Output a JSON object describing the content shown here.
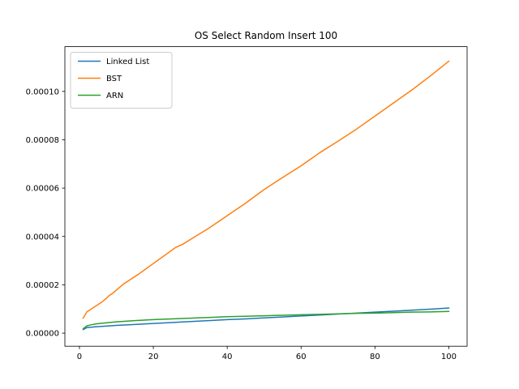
{
  "chart_data": {
    "type": "line",
    "title": "OS Select Random Insert 100",
    "xlabel": "",
    "ylabel": "",
    "xlim": [
      -3.95,
      104.95
    ],
    "ylim": [
      -5.4e-06,
      0.0001185
    ],
    "xticks": [
      0,
      20,
      40,
      60,
      80,
      100
    ],
    "xtick_labels": [
      "0",
      "20",
      "40",
      "60",
      "80",
      "100"
    ],
    "yticks": [
      0,
      2e-05,
      4e-05,
      6e-05,
      8e-05,
      0.0001
    ],
    "ytick_labels": [
      "0.00000",
      "0.00002",
      "0.00004",
      "0.00006",
      "0.00008",
      "0.00010"
    ],
    "grid": false,
    "legend_position": "upper-left",
    "series": [
      {
        "name": "Linked List",
        "color": "#1f77b4",
        "x": [
          1,
          2,
          4,
          6,
          8,
          10,
          15,
          20,
          25,
          30,
          35,
          40,
          45,
          50,
          55,
          60,
          65,
          70,
          75,
          80,
          85,
          90,
          95,
          100
        ],
        "y": [
          1.5e-06,
          2.3e-06,
          2.6e-06,
          2.8e-06,
          3e-06,
          3.2e-06,
          3.6e-06,
          4e-06,
          4.4e-06,
          4.8e-06,
          5.2e-06,
          5.6e-06,
          5.9e-06,
          6.3e-06,
          6.7e-06,
          7.1e-06,
          7.5e-06,
          7.9e-06,
          8.3e-06,
          8.7e-06,
          9.1e-06,
          9.5e-06,
          9.9e-06,
          1.04e-05
        ]
      },
      {
        "name": "BST",
        "color": "#ff7f0e",
        "x": [
          1,
          2,
          3,
          4,
          5,
          6,
          7,
          8,
          9,
          10,
          12,
          14,
          16,
          18,
          20,
          22,
          24,
          26,
          28,
          30,
          35,
          40,
          45,
          50,
          55,
          60,
          65,
          70,
          75,
          80,
          85,
          90,
          95,
          100
        ],
        "y": [
          6.2e-06,
          8.8e-06,
          9.8e-06,
          1.08e-05,
          1.18e-05,
          1.28e-05,
          1.4e-05,
          1.55e-05,
          1.65e-05,
          1.78e-05,
          2.04e-05,
          2.24e-05,
          2.44e-05,
          2.66e-05,
          2.88e-05,
          3.1e-05,
          3.32e-05,
          3.54e-05,
          3.68e-05,
          3.87e-05,
          4.34e-05,
          4.86e-05,
          5.38e-05,
          5.94e-05,
          6.44e-05,
          6.92e-05,
          7.46e-05,
          7.94e-05,
          8.44e-05,
          8.98e-05,
          9.52e-05,
          0.0001006,
          0.0001064,
          0.0001125
        ]
      },
      {
        "name": "ARN",
        "color": "#2ca02c",
        "x": [
          1,
          2,
          3,
          4,
          6,
          8,
          10,
          15,
          20,
          25,
          30,
          35,
          40,
          45,
          50,
          55,
          60,
          65,
          70,
          75,
          80,
          85,
          90,
          95,
          100
        ],
        "y": [
          1.8e-06,
          3e-06,
          3.4e-06,
          3.7e-06,
          4.1e-06,
          4.4e-06,
          4.7e-06,
          5.2e-06,
          5.6e-06,
          5.9e-06,
          6.2e-06,
          6.5e-06,
          6.8e-06,
          7e-06,
          7.2e-06,
          7.4e-06,
          7.6e-06,
          7.8e-06,
          8e-06,
          8.2e-06,
          8.3e-06,
          8.5e-06,
          8.7e-06,
          8.8e-06,
          9e-06
        ]
      }
    ]
  }
}
